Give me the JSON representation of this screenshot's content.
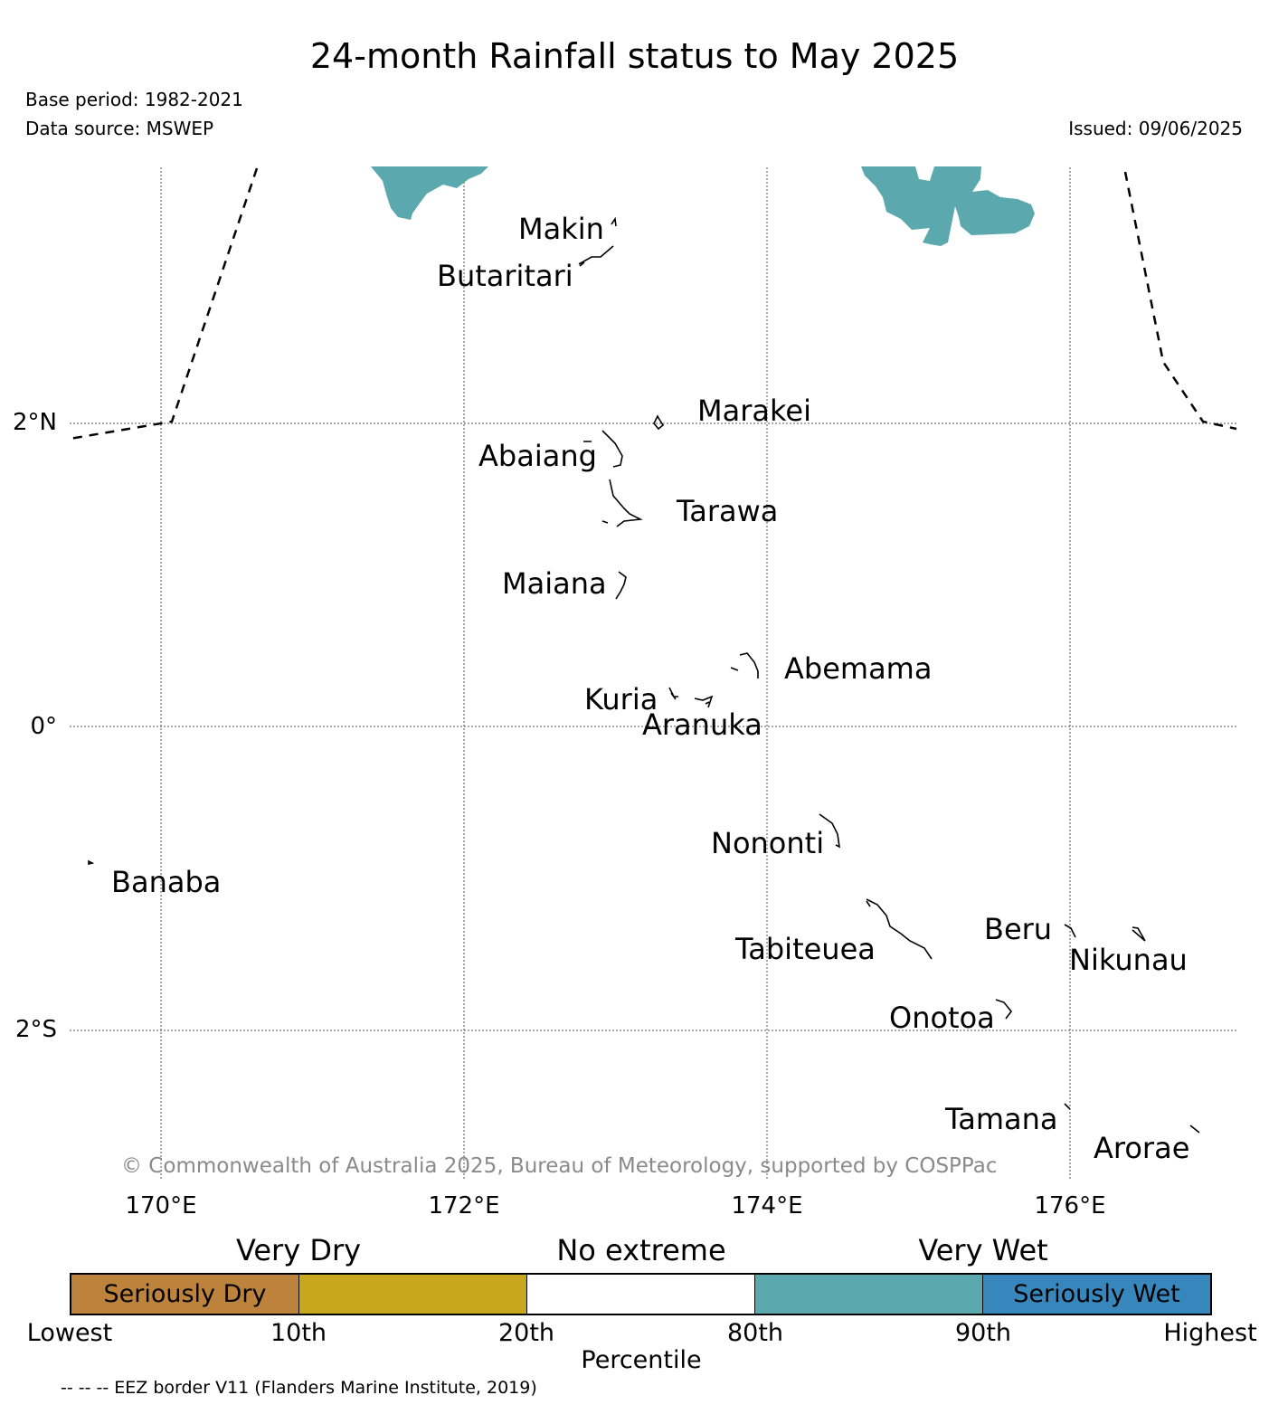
{
  "title": "24-month Rainfall status to May 2025",
  "base_period": "Base period: 1982-2021",
  "data_source": "Data source: MSWEP",
  "issued": "Issued: 09/06/2025",
  "copyright": "© Commonwealth of Australia 2025, Bureau of Meteorology, supported by COSPPac",
  "map": {
    "longitude_labels": [
      "170°E",
      "172°E",
      "174°E",
      "176°E"
    ],
    "latitude_labels": [
      "2°N",
      "0°",
      "2°S"
    ],
    "islands": [
      "Makin",
      "Butaritari",
      "Marakei",
      "Abaiang",
      "Tarawa",
      "Maiana",
      "Abemama",
      "Kuria",
      "Aranuka",
      "Nononti",
      "Banaba",
      "Tabiteuea",
      "Beru",
      "Nikunau",
      "Onotoa",
      "Tamana",
      "Arorae"
    ],
    "colors": {
      "very_wet": "#5ba9ae",
      "gridline": "#555555",
      "eez": "#000000"
    }
  },
  "legend": {
    "segments": [
      {
        "label": "Seriously Dry",
        "color": "#bd833d"
      },
      {
        "label": "",
        "color": "#c6a71e"
      },
      {
        "label": "",
        "color": "#ffffff"
      },
      {
        "label": "",
        "color": "#5ba9ae"
      },
      {
        "label": "Seriously Wet",
        "color": "#3887bc"
      }
    ],
    "categories": [
      "Very Dry",
      "No extreme",
      "Very Wet"
    ],
    "ticks": [
      "Lowest",
      "10th",
      "20th",
      "80th",
      "90th",
      "Highest"
    ],
    "axis_label": "Percentile"
  },
  "footnote": "-- -- -- EEZ border V11 (Flanders Marine Institute, 2019)"
}
